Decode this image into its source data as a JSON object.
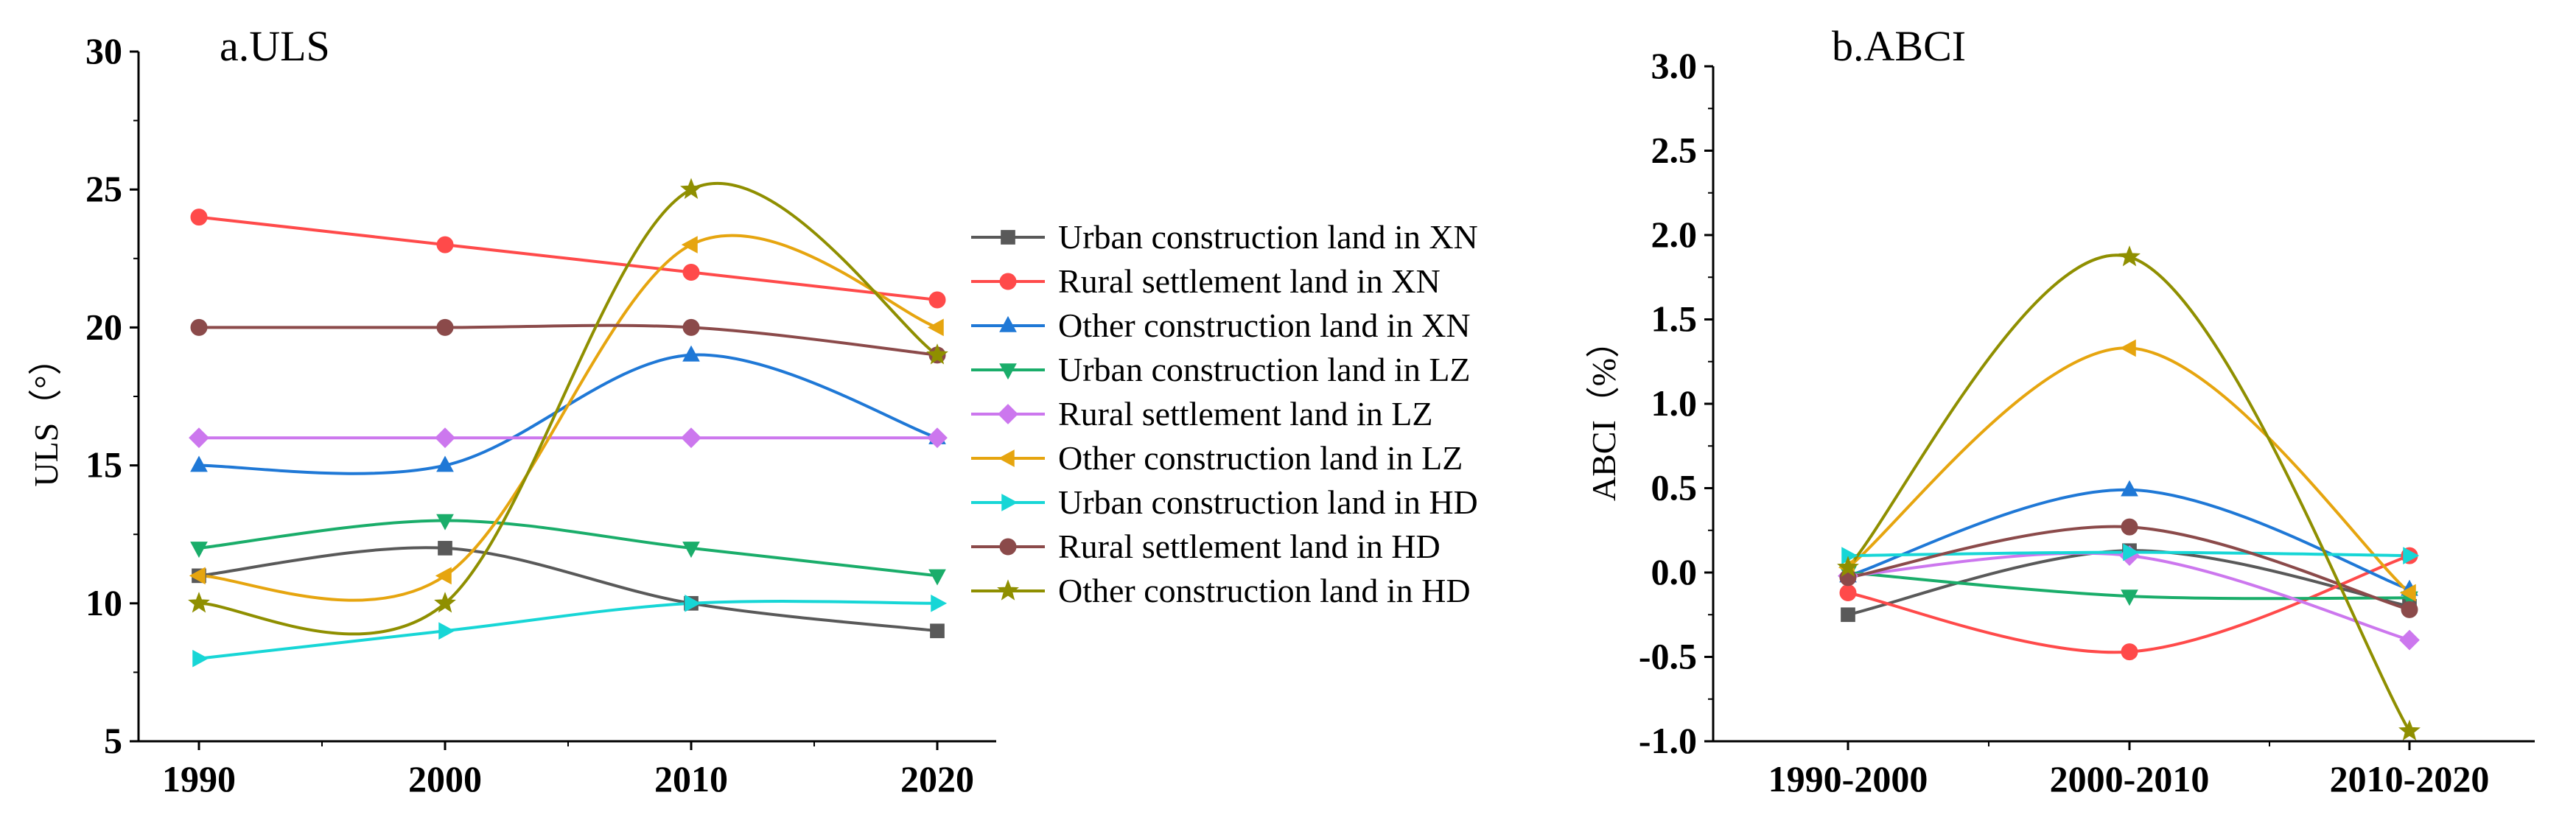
{
  "chart_data": [
    {
      "id": "uls",
      "type": "line",
      "title": "a.ULS",
      "xlabel": "",
      "ylabel": "ULS（°）",
      "x": [
        1990,
        2000,
        2010,
        2020
      ],
      "x_tick_labels": [
        "1990",
        "2000",
        "2010",
        "2020"
      ],
      "ylim": [
        5,
        30
      ],
      "y_ticks": [
        5,
        10,
        15,
        20,
        25,
        30
      ],
      "y_tick_labels": [
        "5",
        "10",
        "15",
        "20",
        "25",
        "30"
      ],
      "grid": false,
      "legend_position": "right",
      "series": [
        {
          "name": "Urban construction land in XN",
          "values": [
            11,
            12,
            10,
            9
          ],
          "color": "#595959",
          "marker": "square",
          "curve": "spline"
        },
        {
          "name": "Rural settlement land in XN",
          "values": [
            24,
            23,
            22,
            21
          ],
          "color": "#ff4a4a",
          "marker": "circle",
          "curve": "spline"
        },
        {
          "name": "Other construction land in XN",
          "values": [
            15,
            15,
            19,
            16
          ],
          "color": "#1f78d6",
          "marker": "triangle-up",
          "curve": "spline"
        },
        {
          "name": "Urban construction land in LZ",
          "values": [
            12,
            13,
            12,
            11
          ],
          "color": "#1aad6a",
          "marker": "triangle-down",
          "curve": "spline"
        },
        {
          "name": "Rural settlement land in LZ",
          "values": [
            16,
            16,
            16,
            16
          ],
          "color": "#cc77ee",
          "marker": "diamond",
          "curve": "spline"
        },
        {
          "name": "Other construction land in LZ",
          "values": [
            11,
            11,
            23,
            20
          ],
          "color": "#e6a50f",
          "marker": "triangle-left",
          "curve": "spline"
        },
        {
          "name": "Urban construction land in HD",
          "values": [
            8,
            9,
            10,
            10
          ],
          "color": "#17d6d6",
          "marker": "triangle-right",
          "curve": "spline"
        },
        {
          "name": "Rural settlement land in HD",
          "values": [
            20,
            20,
            20,
            19
          ],
          "color": "#8b4a4a",
          "marker": "circle",
          "curve": "spline"
        },
        {
          "name": "Other construction land in HD",
          "values": [
            10,
            10,
            25,
            19
          ],
          "color": "#8f8f00",
          "marker": "star",
          "curve": "spline"
        }
      ]
    },
    {
      "id": "abci",
      "type": "line",
      "title": "b.ABCI",
      "xlabel": "",
      "ylabel": "ABCI（%）",
      "categories": [
        "1990-2000",
        "2000-2010",
        "2010-2020"
      ],
      "ylim": [
        -1.0,
        3.0
      ],
      "y_ticks": [
        -1.0,
        -0.5,
        0.0,
        0.5,
        1.0,
        1.5,
        2.0,
        2.5,
        3.0
      ],
      "y_tick_labels": [
        "-1.0",
        "-0.5",
        "0.0",
        "0.5",
        "1.0",
        "1.5",
        "2.0",
        "2.5",
        "3.0"
      ],
      "grid": false,
      "series": [
        {
          "name": "Urban construction land in XN",
          "values": [
            -0.25,
            0.13,
            -0.2
          ],
          "color": "#595959",
          "marker": "square",
          "curve": "spline"
        },
        {
          "name": "Rural settlement land in XN",
          "values": [
            -0.12,
            -0.47,
            0.1
          ],
          "color": "#ff4a4a",
          "marker": "circle",
          "curve": "spline"
        },
        {
          "name": "Other construction land in XN",
          "values": [
            -0.02,
            0.49,
            -0.1
          ],
          "color": "#1f78d6",
          "marker": "triangle-up",
          "curve": "spline"
        },
        {
          "name": "Urban construction land in LZ",
          "values": [
            0.0,
            -0.14,
            -0.15
          ],
          "color": "#1aad6a",
          "marker": "triangle-down",
          "curve": "spline"
        },
        {
          "name": "Rural settlement land in LZ",
          "values": [
            -0.02,
            0.1,
            -0.4
          ],
          "color": "#cc77ee",
          "marker": "diamond",
          "curve": "spline"
        },
        {
          "name": "Other construction land in LZ",
          "values": [
            0.03,
            1.33,
            -0.12
          ],
          "color": "#e6a50f",
          "marker": "triangle-left",
          "curve": "spline"
        },
        {
          "name": "Urban construction land in HD",
          "values": [
            0.1,
            0.12,
            0.1
          ],
          "color": "#17d6d6",
          "marker": "triangle-right",
          "curve": "spline"
        },
        {
          "name": "Rural settlement land in HD",
          "values": [
            -0.03,
            0.27,
            -0.22
          ],
          "color": "#8b4a4a",
          "marker": "circle",
          "curve": "spline"
        },
        {
          "name": "Other construction land in HD",
          "values": [
            0.03,
            1.87,
            -0.94
          ],
          "color": "#8f8f00",
          "marker": "star",
          "curve": "spline"
        }
      ]
    }
  ]
}
